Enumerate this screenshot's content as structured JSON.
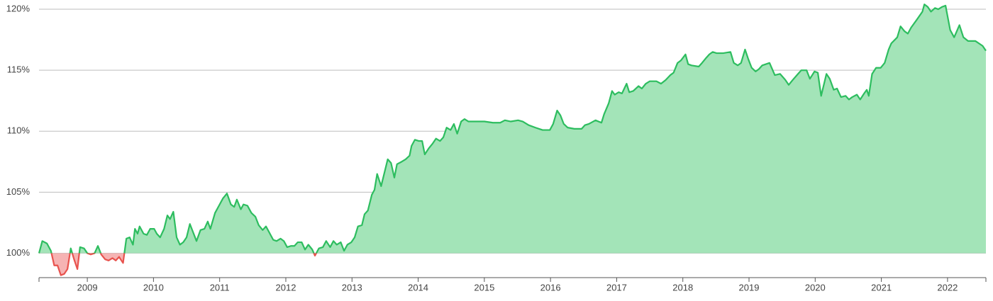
{
  "chart_data": {
    "type": "area",
    "x": [
      2008.27,
      2008.32,
      2008.39,
      2008.45,
      2008.5,
      2008.55,
      2008.6,
      2008.65,
      2008.7,
      2008.75,
      2008.8,
      2008.85,
      2008.89,
      2008.95,
      2009.0,
      2009.05,
      2009.11,
      2009.16,
      2009.21,
      2009.27,
      2009.32,
      2009.38,
      2009.43,
      2009.48,
      2009.54,
      2009.59,
      2009.64,
      2009.69,
      2009.72,
      2009.76,
      2009.79,
      2009.85,
      2009.9,
      2009.95,
      2010.01,
      2010.05,
      2010.1,
      2010.16,
      2010.21,
      2010.25,
      2010.3,
      2010.35,
      2010.4,
      2010.45,
      2010.5,
      2010.55,
      2010.6,
      2010.65,
      2010.71,
      2010.77,
      2010.82,
      2010.86,
      2010.93,
      2010.99,
      2011.05,
      2011.11,
      2011.17,
      2011.22,
      2011.26,
      2011.32,
      2011.36,
      2011.42,
      2011.48,
      2011.54,
      2011.59,
      2011.65,
      2011.7,
      2011.75,
      2011.81,
      2011.86,
      2011.92,
      2011.97,
      2012.02,
      2012.08,
      2012.13,
      2012.18,
      2012.24,
      2012.29,
      2012.34,
      2012.4,
      2012.44,
      2012.5,
      2012.56,
      2012.61,
      2012.67,
      2012.72,
      2012.77,
      2012.83,
      2012.88,
      2012.93,
      2012.99,
      2013.04,
      2013.09,
      2013.15,
      2013.19,
      2013.24,
      2013.3,
      2013.34,
      2013.38,
      2013.44,
      2013.49,
      2013.54,
      2013.59,
      2013.64,
      2013.68,
      2013.75,
      2013.81,
      2013.87,
      2013.9,
      2013.95,
      2014.01,
      2014.06,
      2014.1,
      2014.16,
      2014.22,
      2014.27,
      2014.33,
      2014.38,
      2014.43,
      2014.49,
      2014.54,
      2014.59,
      2014.65,
      2014.7,
      2014.76,
      2014.86,
      2015.0,
      2015.13,
      2015.24,
      2015.31,
      2015.4,
      2015.51,
      2015.58,
      2015.67,
      2015.77,
      2015.88,
      2015.99,
      2016.04,
      2016.1,
      2016.15,
      2016.2,
      2016.26,
      2016.36,
      2016.47,
      2016.52,
      2016.58,
      2016.68,
      2016.77,
      2016.81,
      2016.88,
      2016.93,
      2016.97,
      2017.03,
      2017.08,
      2017.15,
      2017.19,
      2017.25,
      2017.33,
      2017.38,
      2017.44,
      2017.5,
      2017.6,
      2017.67,
      2017.74,
      2017.81,
      2017.86,
      2017.92,
      2017.97,
      2018.04,
      2018.08,
      2018.13,
      2018.24,
      2018.29,
      2018.35,
      2018.4,
      2018.45,
      2018.51,
      2018.61,
      2018.72,
      2018.77,
      2018.83,
      2018.88,
      2018.94,
      2018.99,
      2019.04,
      2019.1,
      2019.15,
      2019.2,
      2019.31,
      2019.39,
      2019.47,
      2019.55,
      2019.6,
      2019.66,
      2019.74,
      2019.79,
      2019.87,
      2019.92,
      2019.99,
      2020.04,
      2020.09,
      2020.17,
      2020.22,
      2020.28,
      2020.33,
      2020.39,
      2020.46,
      2020.51,
      2020.56,
      2020.63,
      2020.68,
      2020.74,
      2020.78,
      2020.81,
      2020.86,
      2020.92,
      2020.99,
      2021.05,
      2021.11,
      2021.15,
      2021.24,
      2021.29,
      2021.35,
      2021.4,
      2021.45,
      2021.53,
      2021.62,
      2021.65,
      2021.7,
      2021.75,
      2021.81,
      2021.86,
      2021.92,
      2021.97,
      2022.04,
      2022.1,
      2022.18,
      2022.24,
      2022.31,
      2022.42,
      2022.53,
      2022.58
    ],
    "values": [
      100.0,
      101.0,
      100.8,
      100.2,
      99.0,
      99.0,
      98.2,
      98.3,
      98.7,
      100.4,
      99.5,
      98.7,
      100.5,
      100.4,
      100.0,
      99.9,
      100.0,
      100.6,
      99.9,
      99.5,
      99.4,
      99.6,
      99.4,
      99.7,
      99.2,
      101.2,
      101.3,
      100.7,
      102.0,
      101.6,
      102.2,
      101.6,
      101.5,
      102.0,
      102.0,
      101.6,
      101.3,
      102.0,
      103.1,
      102.8,
      103.4,
      101.3,
      100.7,
      100.9,
      101.3,
      102.4,
      101.7,
      101.0,
      101.9,
      102.0,
      102.6,
      102.0,
      103.3,
      103.9,
      104.5,
      104.9,
      104.0,
      103.8,
      104.4,
      103.6,
      104.0,
      103.9,
      103.3,
      103.0,
      102.3,
      101.9,
      102.2,
      101.7,
      101.1,
      101.0,
      101.2,
      101.0,
      100.5,
      100.6,
      100.6,
      100.9,
      100.9,
      100.3,
      100.7,
      100.3,
      99.8,
      100.4,
      100.5,
      101.0,
      100.5,
      101.0,
      100.7,
      100.9,
      100.2,
      100.7,
      100.9,
      101.3,
      102.2,
      102.3,
      103.2,
      103.5,
      104.8,
      105.2,
      106.5,
      105.5,
      106.6,
      107.7,
      107.4,
      106.2,
      107.3,
      107.5,
      107.7,
      108.0,
      108.8,
      109.3,
      109.2,
      109.2,
      108.1,
      108.6,
      109.0,
      109.4,
      109.2,
      109.5,
      110.3,
      110.1,
      110.6,
      109.8,
      110.8,
      111.0,
      110.8,
      110.8,
      110.8,
      110.7,
      110.7,
      110.9,
      110.8,
      110.9,
      110.8,
      110.5,
      110.3,
      110.1,
      110.1,
      110.6,
      111.7,
      111.3,
      110.6,
      110.3,
      110.2,
      110.2,
      110.5,
      110.6,
      110.9,
      110.7,
      111.4,
      112.3,
      113.3,
      113.0,
      113.2,
      113.1,
      113.9,
      113.2,
      113.3,
      113.7,
      113.5,
      113.9,
      114.1,
      114.1,
      113.9,
      114.2,
      114.6,
      114.8,
      115.6,
      115.8,
      116.3,
      115.5,
      115.4,
      115.3,
      115.6,
      116.0,
      116.3,
      116.5,
      116.4,
      116.4,
      116.5,
      115.6,
      115.4,
      115.6,
      116.7,
      115.9,
      115.2,
      114.9,
      115.1,
      115.4,
      115.6,
      114.6,
      114.7,
      114.2,
      113.8,
      114.2,
      114.7,
      115.0,
      115.0,
      114.3,
      114.9,
      114.8,
      112.9,
      114.7,
      114.3,
      113.4,
      113.5,
      112.8,
      112.9,
      112.6,
      112.8,
      113.0,
      112.6,
      113.1,
      113.4,
      112.9,
      114.7,
      115.2,
      115.2,
      115.6,
      116.7,
      117.2,
      117.7,
      118.6,
      118.2,
      118.0,
      118.5,
      119.1,
      119.8,
      120.4,
      120.2,
      119.8,
      120.1,
      120.0,
      120.2,
      120.3,
      118.3,
      117.7,
      118.7,
      117.7,
      117.4,
      117.4,
      117.0,
      116.6
    ],
    "color_above": "#2dbd5f",
    "fill_above": "#a3e4b8",
    "color_below": "#e8534e",
    "fill_below": "#f6b3b3",
    "xlim": [
      2008.27,
      2022.58
    ],
    "xticks": [
      2009,
      2010,
      2011,
      2012,
      2013,
      2014,
      2015,
      2016,
      2017,
      2018,
      2019,
      2020,
      2021,
      2022
    ],
    "ylim": [
      98,
      120.7
    ],
    "yticks": [
      {
        "value": 100,
        "label": "100%"
      },
      {
        "value": 105,
        "label": "105%"
      },
      {
        "value": 110,
        "label": "110%"
      },
      {
        "value": 115,
        "label": "115%"
      },
      {
        "value": 120,
        "label": "120%"
      }
    ],
    "grid": true
  }
}
